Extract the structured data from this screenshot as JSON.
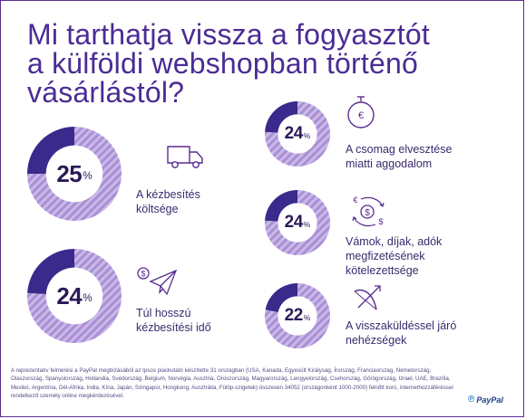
{
  "title_lines": [
    "Mi tarthatja vissza a fogyasztót",
    "a külföldi webshopban történő",
    "vásárlástól?"
  ],
  "colors": {
    "title": "#4b2c94",
    "dark_segment": "#3a2a8c",
    "striped_light": "#cbb9e6",
    "striped_dark": "#a88fd6",
    "icon_purple": "#5a2d91"
  },
  "stats": [
    {
      "value": 25,
      "pct_sign": "%",
      "label_lines": [
        "A kézbesítés",
        "költsége"
      ],
      "icon": "delivery-truck-icon"
    },
    {
      "value": 24,
      "pct_sign": "%",
      "label_lines": [
        "Túl hosszú",
        "kézbesítési idő"
      ],
      "icon": "paper-plane-money-icon"
    },
    {
      "value": 24,
      "pct_sign": "%",
      "label_lines": [
        "A csomag elvesztése",
        "miatti aggodalom"
      ],
      "icon": "stopwatch-icon"
    },
    {
      "value": 24,
      "pct_sign": "%",
      "label_lines": [
        "Vámok, díjak, adók",
        "megfizetésének",
        "kötelezettsége"
      ],
      "icon": "money-exchange-icon"
    },
    {
      "value": 22,
      "pct_sign": "%",
      "label_lines": [
        "A visszaküldéssel járó",
        "nehézségek"
      ],
      "icon": "bow-arrow-icon"
    }
  ],
  "footnote": "A reprezentatív felmérési a PayPal megbízásából az Ipsos piackutató készítette 31 országban (USA, Kanada, Egyesült Királyság, Írország, Franciaország, Németország, Olaszország, Spanyolország, Hollandia, Svédország, Belgium, Norvégia, Ausztria, Oroszország, Magyarország, Lengyelország, Csehország, Görögország, Izrael, UAE, Brazília, Mexikó, Argentína, Dél-Afrika, India, Kína, Japán, Szingapúr, Hongkong, Ausztrália, Fülöp-szigetek) összesen 34052 (országonként 1000-2000) felnőtt korú, internethozzáféréssel rendelkező személy online megkérdezésével.",
  "brand": "PayPal"
}
